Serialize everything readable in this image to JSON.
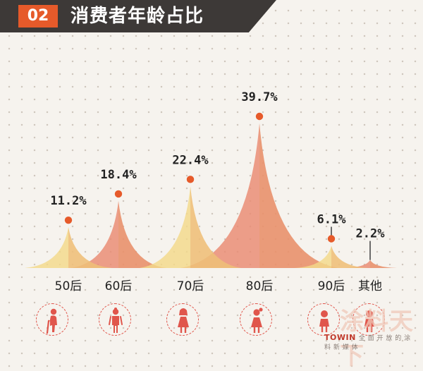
{
  "header": {
    "badge": "02",
    "title": "消费者年龄占比"
  },
  "chart_data": {
    "type": "area",
    "title": "消费者年龄占比",
    "categories": [
      "50后",
      "60后",
      "70后",
      "80后",
      "90后",
      "其他"
    ],
    "values": [
      11.2,
      18.4,
      22.4,
      39.7,
      6.1,
      2.2
    ],
    "labels": [
      "11.2%",
      "18.4%",
      "22.4%",
      "39.7%",
      "6.1%",
      "2.2%"
    ],
    "unit": "%",
    "grid": false,
    "legend": "none",
    "colors": {
      "yellow": "#f3d98a",
      "orange": "#e8995f",
      "salmon": "#e98a72",
      "marker": "#e65a2a",
      "text": "#222222"
    }
  },
  "icons": [
    "elderly-man-icon",
    "elderly-woman-icon",
    "woman-icon",
    "girl-icon",
    "child-icon",
    "child-icon"
  ],
  "watermark": {
    "text": "涂料天下",
    "brand": "TOWIN",
    "subtext": "全 面 开 放 的 涂 料 新 媒 体"
  }
}
